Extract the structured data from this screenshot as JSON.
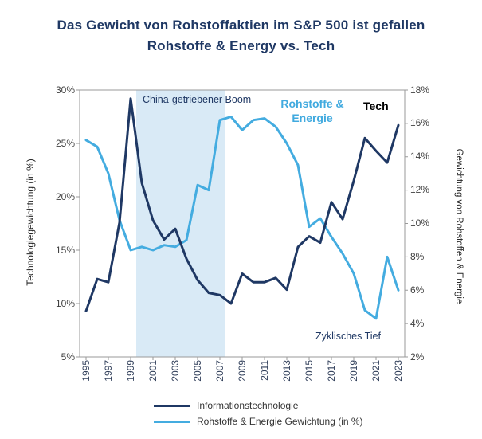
{
  "title": {
    "line1": "Das Gewicht von Rohstoffaktien im S&P 500 ist gefallen",
    "line2": "Rohstoffe & Energy vs. Tech"
  },
  "chart_data": {
    "type": "line",
    "x": [
      1995,
      1996,
      1997,
      1998,
      1999,
      2000,
      2001,
      2002,
      2003,
      2004,
      2005,
      2006,
      2007,
      2008,
      2009,
      2010,
      2011,
      2012,
      2013,
      2014,
      2015,
      2016,
      2017,
      2018,
      2019,
      2020,
      2021,
      2022,
      2023
    ],
    "x_tick_labels": [
      "1995",
      "1997",
      "1999",
      "2001",
      "2003",
      "2005",
      "2007",
      "2009",
      "2011",
      "2013",
      "2015",
      "2017",
      "2019",
      "2021",
      "2023"
    ],
    "left_axis": {
      "label": "Technologiegewichtung (in %)",
      "range": [
        5,
        30
      ],
      "ticks": [
        30,
        25,
        20,
        15,
        10,
        5
      ],
      "tick_suffix": "%"
    },
    "right_axis": {
      "label": "Gewichtung von Rohstoffen & Energie",
      "range": [
        2,
        18
      ],
      "ticks": [
        18,
        16,
        14,
        12,
        10,
        8,
        6,
        4,
        2
      ],
      "tick_suffix": "%"
    },
    "series": [
      {
        "name": "Informationstechnologie",
        "axis": "left",
        "color": "#1F3864",
        "line_width": 3,
        "values": [
          9.3,
          12.3,
          12.0,
          17.6,
          29.2,
          21.3,
          17.8,
          16.0,
          17.0,
          14.2,
          12.2,
          11.0,
          10.8,
          10.0,
          12.8,
          12.0,
          12.0,
          12.4,
          11.3,
          15.3,
          16.3,
          15.7,
          19.5,
          17.9,
          21.5,
          25.5,
          24.3,
          23.2,
          26.7
        ]
      },
      {
        "name": "Rohstoffe & Energie Gewichtung (in %)",
        "axis": "right",
        "color": "#44ACE0",
        "line_width": 3,
        "values": [
          15.0,
          14.6,
          13.0,
          10.2,
          8.4,
          8.6,
          8.4,
          8.7,
          8.6,
          9.0,
          12.3,
          12.0,
          16.2,
          16.4,
          15.6,
          16.2,
          16.3,
          15.8,
          14.8,
          13.5,
          9.8,
          10.3,
          9.2,
          8.2,
          7.0,
          4.8,
          4.3,
          8.0,
          6.0
        ]
      }
    ],
    "shaded_region": {
      "x_from": 1999.5,
      "x_to": 2007.5,
      "color": "#D9EAF6"
    },
    "annotations": [
      {
        "id": "china-boom",
        "text": "China-getriebener Boom",
        "color": "#1F3864"
      },
      {
        "id": "rohstoffe-energie",
        "text": "Rohstoffe & Energie",
        "color": "#41AADF"
      },
      {
        "id": "tech",
        "text": "Tech",
        "color": "#000000"
      },
      {
        "id": "zyklisches-tief",
        "text": "Zyklisches Tief",
        "color": "#1F3864"
      }
    ],
    "legend": [
      {
        "label": "Informationstechnologie",
        "color": "#1F3864"
      },
      {
        "label": "Rohstoffe & Energie Gewichtung (in %)",
        "color": "#44ACE0"
      }
    ]
  }
}
